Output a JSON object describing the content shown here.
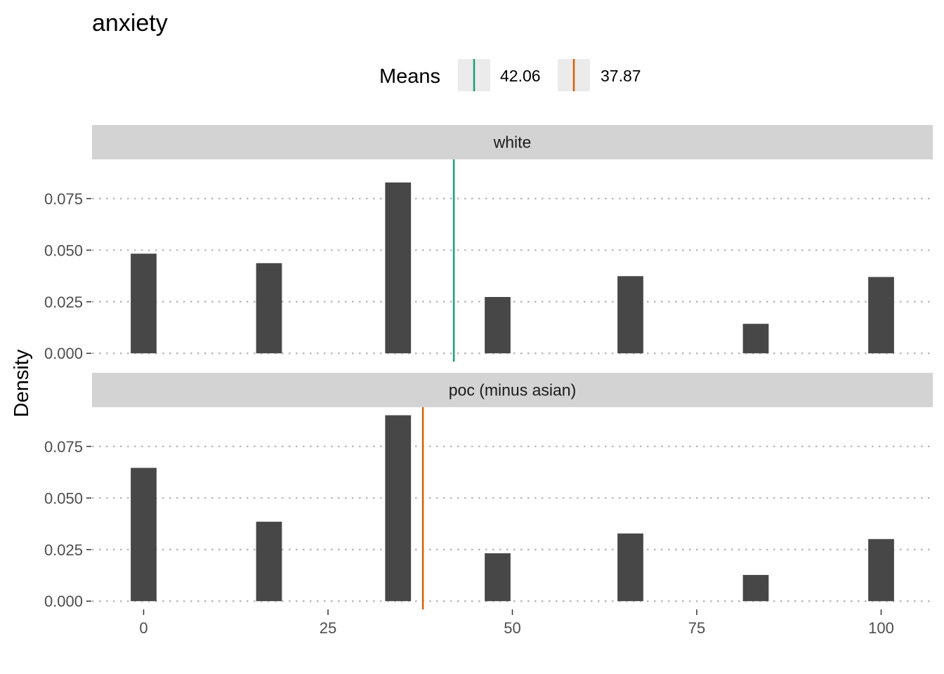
{
  "chart_data": {
    "type": "bar",
    "title": "anxiety",
    "ylabel": "Density",
    "xlabel": "",
    "legend": {
      "title": "Means",
      "position": "top",
      "entries": [
        {
          "label": "42.06",
          "color": "#1B9E77"
        },
        {
          "label": "37.87",
          "color": "#D95F02"
        }
      ]
    },
    "x_ticks": [
      0,
      25,
      50,
      75,
      100
    ],
    "y_ticks": [
      0.0,
      0.025,
      0.05,
      0.075
    ],
    "y_tick_labels": [
      "0.000",
      "0.025",
      "0.050",
      "0.075"
    ],
    "xlim": [
      -7,
      107
    ],
    "ylim": [
      -0.004,
      0.094
    ],
    "bar_width": 3.5,
    "grid": "horizontal dotted",
    "facets": [
      {
        "label": "white",
        "mean": 42.06,
        "mean_color": "#1B9E77",
        "bars": [
          {
            "x": 0,
            "density": 0.0483
          },
          {
            "x": 17,
            "density": 0.0437
          },
          {
            "x": 34.5,
            "density": 0.0828
          },
          {
            "x": 48,
            "density": 0.0273
          },
          {
            "x": 66,
            "density": 0.0374
          },
          {
            "x": 83,
            "density": 0.0143
          },
          {
            "x": 100,
            "density": 0.037
          }
        ]
      },
      {
        "label": "poc (minus asian)",
        "mean": 37.87,
        "mean_color": "#D95F02",
        "bars": [
          {
            "x": 0,
            "density": 0.0646
          },
          {
            "x": 17,
            "density": 0.0385
          },
          {
            "x": 34.5,
            "density": 0.0901
          },
          {
            "x": 48,
            "density": 0.0232
          },
          {
            "x": 66,
            "density": 0.0328
          },
          {
            "x": 83,
            "density": 0.0127
          },
          {
            "x": 100,
            "density": 0.0301
          }
        ]
      }
    ]
  }
}
